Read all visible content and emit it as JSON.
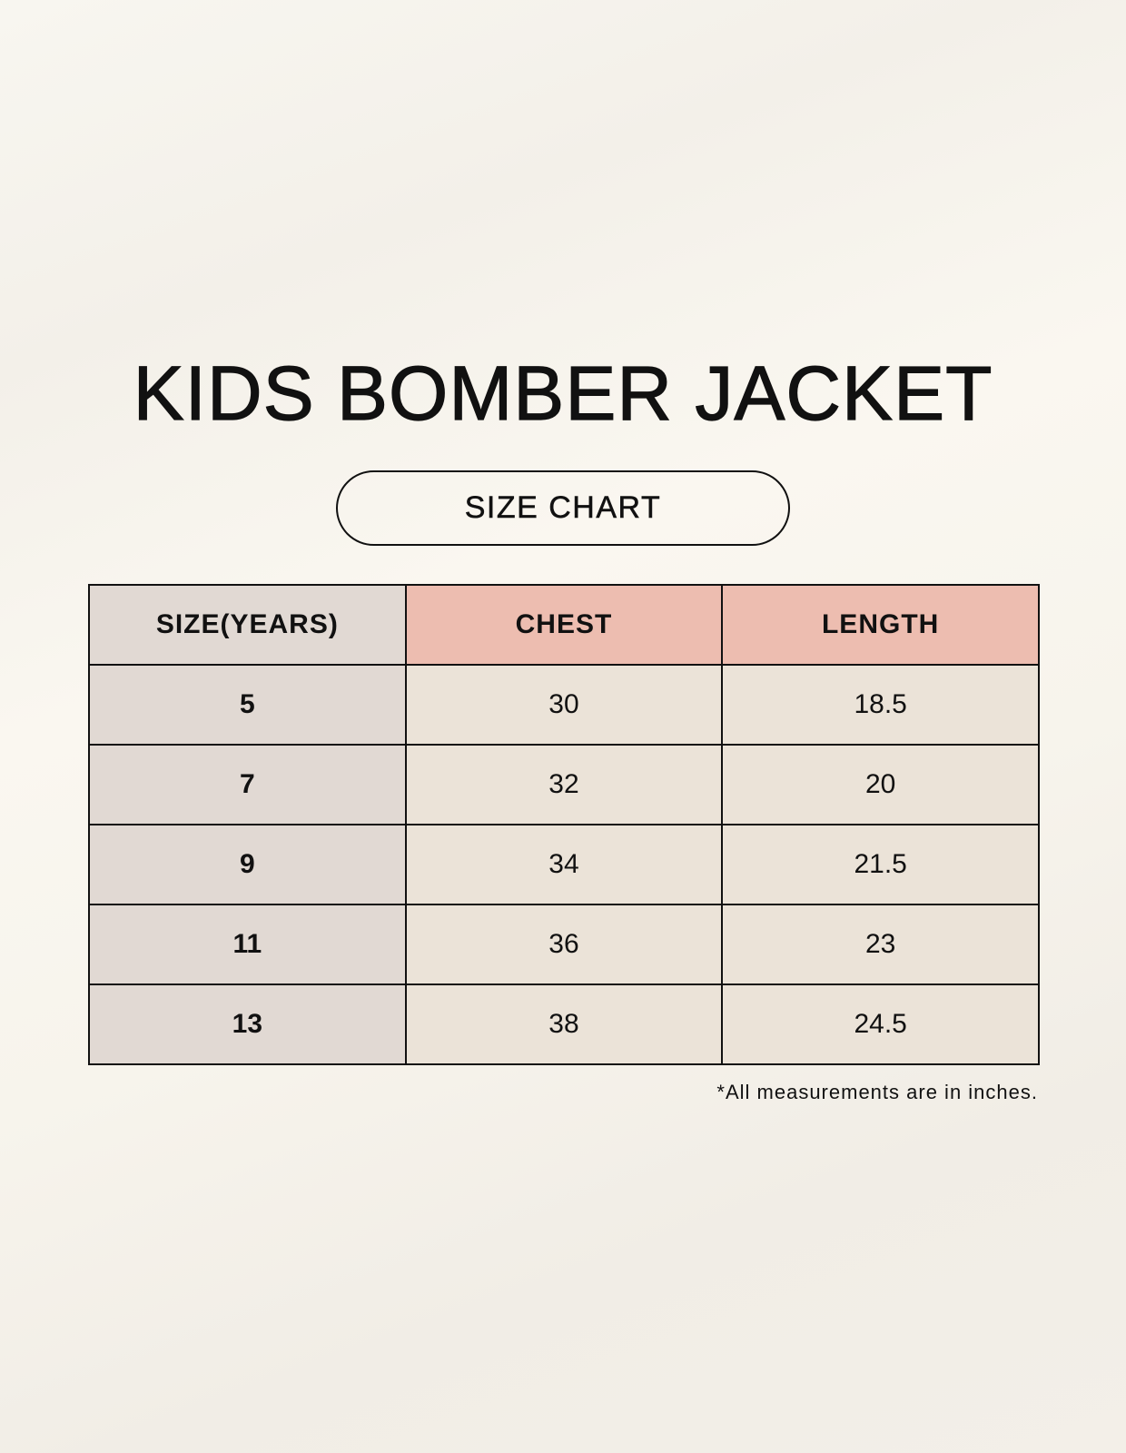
{
  "title": "KIDS BOMBER JACKET",
  "subtitle": "SIZE CHART",
  "table": {
    "headers": [
      "SIZE(YEARS)",
      "CHEST",
      "LENGTH"
    ],
    "rows": [
      [
        "5",
        "30",
        "18.5"
      ],
      [
        "7",
        "32",
        "20"
      ],
      [
        "9",
        "34",
        "21.5"
      ],
      [
        "11",
        "36",
        "23"
      ],
      [
        "13",
        "38",
        "24.5"
      ]
    ]
  },
  "footnote": "*All measurements are in inches.",
  "colors": {
    "header_size": "#e1d9d3",
    "header_measure": "#edbdb0",
    "cell": "#ebe3d8",
    "size_cell": "#e1d9d3"
  }
}
